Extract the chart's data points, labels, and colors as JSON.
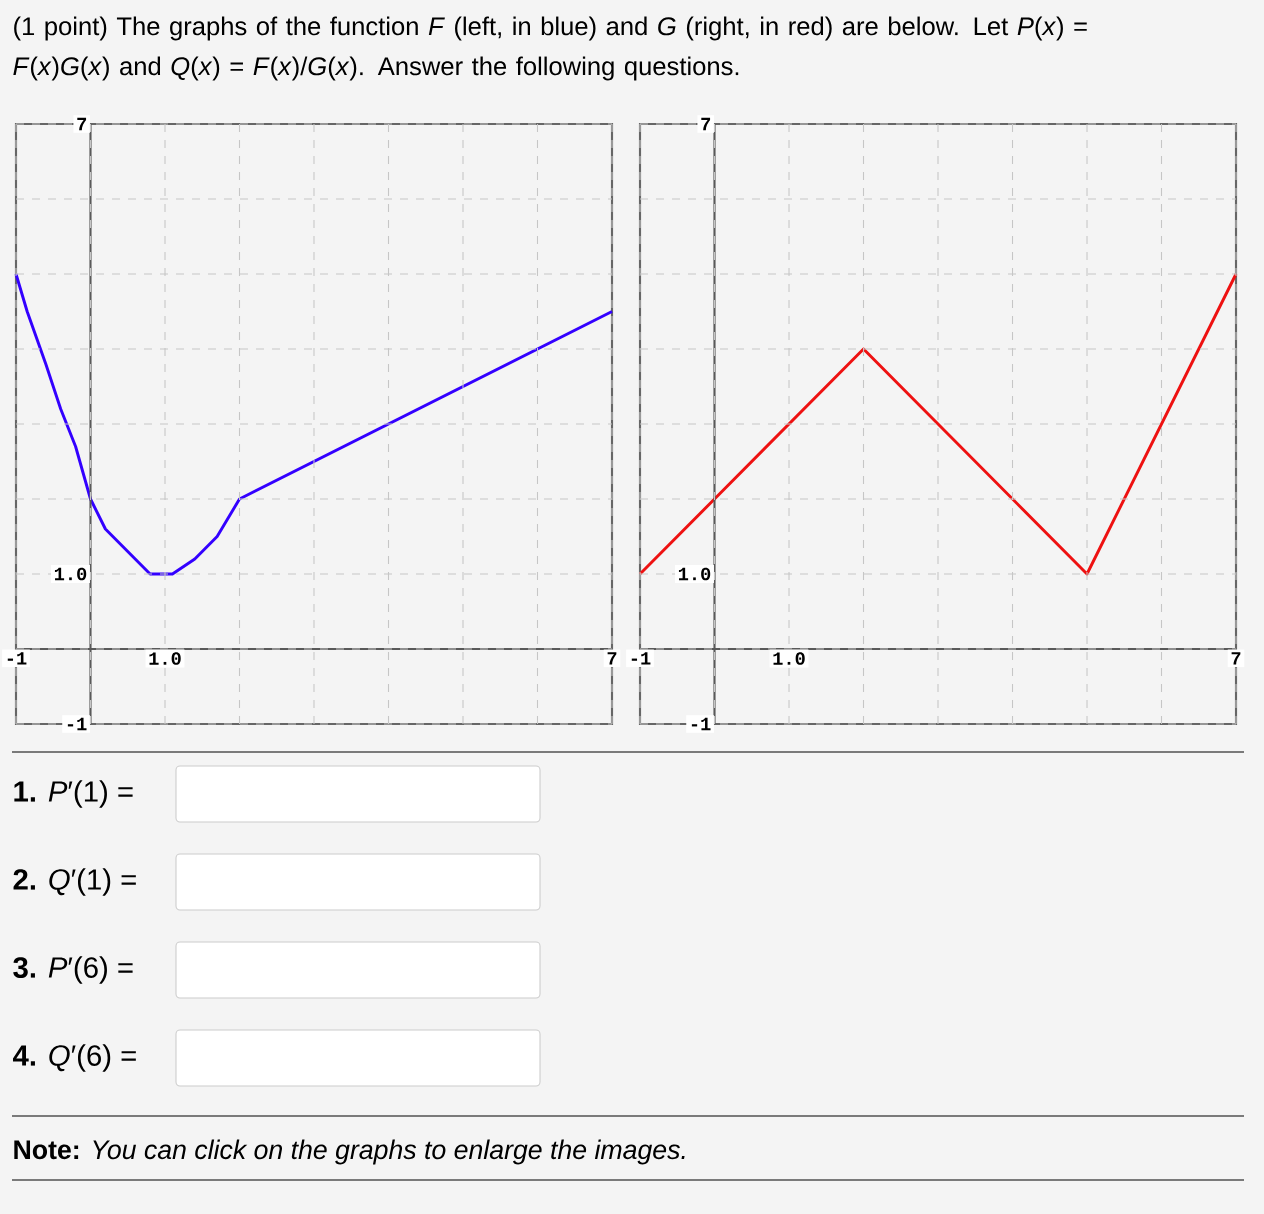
{
  "chart_data": [
    {
      "type": "line",
      "x": [
        -1,
        -0.85,
        -0.6,
        -0.4,
        -0.2,
        0,
        0.2,
        0.5,
        0.8,
        1.1,
        1.4,
        1.7,
        2,
        7
      ],
      "values": [
        5,
        4.5,
        3.8,
        3.2,
        2.7,
        2,
        1.6,
        1.3,
        1.0,
        1.0,
        1.2,
        1.5,
        2,
        4.5
      ],
      "color": "#3300ff",
      "xlim": [
        -1,
        7
      ],
      "ylim": [
        -1,
        7
      ],
      "xticks": [
        -1,
        {
          "value": 0,
          "label": null
        },
        {
          "value": 1,
          "label": "1.0"
        },
        {
          "value": 2,
          "label": null
        },
        {
          "value": 3,
          "label": null
        },
        {
          "value": 4,
          "label": null
        },
        {
          "value": 5,
          "label": null
        },
        {
          "value": 6,
          "label": null
        },
        7
      ],
      "yticks": [
        -1,
        {
          "value": 0,
          "label": null
        },
        {
          "value": 1,
          "label": "1.0"
        },
        {
          "value": 2,
          "label": null
        },
        {
          "value": 3,
          "label": null
        },
        {
          "value": 4,
          "label": null
        },
        {
          "value": 5,
          "label": null
        },
        {
          "value": 6,
          "label": null
        },
        7
      ],
      "grid": true,
      "marker": "none",
      "annotations": [
        "(1 point) The graphs of the function *F* (left, in blue) and *G* (right, in red) are below. Let *P*(*x*) = *F*(*x*)*G*(*x*) and *Q*(*x*) = *F*(*x*)/*G*(*x*). Answer the following questions.",
        "**1.** *P*′(1) =",
        "**2.** *Q*′(1) =",
        "**3.** *P*′(6) =",
        "**4.** *Q*′(6) =",
        "**Note:** *You can click on the graphs to enlarge the images.*"
      ]
    },
    {
      "type": "line",
      "x": [
        -1,
        0,
        2,
        5,
        7
      ],
      "values": [
        1,
        2,
        4,
        1,
        5
      ],
      "color": "#ee1111",
      "xlim": [
        -1,
        7
      ],
      "ylim": [
        -1,
        7
      ],
      "xticks": [
        -1,
        {
          "value": 0,
          "label": null
        },
        {
          "value": 1,
          "label": "1.0"
        },
        {
          "value": 2,
          "label": null
        },
        {
          "value": 3,
          "label": null
        },
        {
          "value": 4,
          "label": null
        },
        {
          "value": 5,
          "label": null
        },
        {
          "value": 6,
          "label": null
        },
        7
      ],
      "yticks": [
        -1,
        {
          "value": 0,
          "label": null
        },
        {
          "value": 1,
          "label": "1.0"
        },
        {
          "value": 2,
          "label": null
        },
        {
          "value": 3,
          "label": null
        },
        {
          "value": 4,
          "label": null
        },
        {
          "value": 5,
          "label": null
        },
        {
          "value": 6,
          "label": null
        },
        7
      ],
      "grid": true,
      "marker": "none"
    }
  ]
}
